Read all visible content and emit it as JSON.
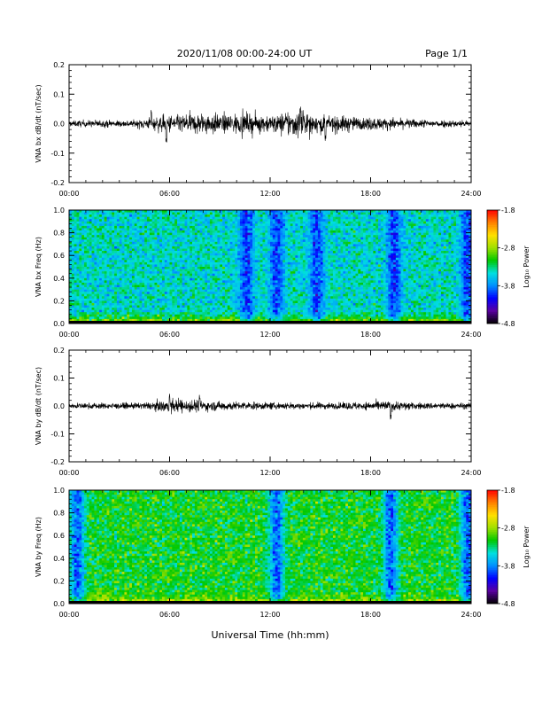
{
  "header": {
    "title": "2020/11/08  00:00-24:00 UT",
    "page": "Page 1/1"
  },
  "footer": {
    "xlabel": "Universal Time (hh:mm)"
  },
  "colors": {
    "trace": "#000000",
    "colormap": [
      "#000000",
      "#5a00a0",
      "#0000ff",
      "#0090ff",
      "#00e0e0",
      "#00c800",
      "#a0e000",
      "#ffe000",
      "#ff8000",
      "#ff0000"
    ]
  },
  "chart_data": [
    {
      "type": "line",
      "ylabel": "VNA bx dB/dt (nT/sec)",
      "ylim": [
        -0.2,
        0.2
      ],
      "yticks": [
        "0.2",
        "0.1",
        "0.0",
        "-0.1",
        "-0.2"
      ],
      "xticks": [
        "00:00",
        "06:00",
        "12:00",
        "18:00",
        "24:00"
      ],
      "xlim_hours": [
        0,
        24
      ],
      "baseline_amplitude": 0.008,
      "envelope_hours": [
        0,
        1,
        2,
        3,
        4,
        5,
        6,
        7,
        8,
        9,
        10,
        11,
        12,
        13,
        14,
        15,
        16,
        17,
        18,
        19,
        20,
        21,
        22,
        23,
        24
      ],
      "envelope_amplitude": [
        0.012,
        0.014,
        0.015,
        0.014,
        0.015,
        0.03,
        0.04,
        0.045,
        0.05,
        0.045,
        0.05,
        0.045,
        0.04,
        0.06,
        0.06,
        0.04,
        0.04,
        0.03,
        0.03,
        0.025,
        0.02,
        0.018,
        0.015,
        0.015,
        0.014
      ],
      "spikes": [
        {
          "hour": 4.9,
          "value": 0.05
        },
        {
          "hour": 5.8,
          "value": -0.07
        },
        {
          "hour": 13.8,
          "value": 0.06
        },
        {
          "hour": 15.3,
          "value": -0.06
        }
      ]
    },
    {
      "type": "heatmap",
      "ylabel": "VNA bx Freq (Hz)",
      "ylim": [
        0,
        1.0
      ],
      "yticks": [
        "1.0",
        "0.8",
        "0.6",
        "0.4",
        "0.2",
        "0.0"
      ],
      "xticks": [
        "00:00",
        "06:00",
        "12:00",
        "18:00",
        "24:00"
      ],
      "xlim_hours": [
        0,
        24
      ],
      "colorbar": {
        "label": "Log₁₀ Power",
        "range": [
          -4.8,
          -1.8
        ],
        "ticks": [
          "-1.8",
          "-2.8",
          "-3.8",
          "-4.8"
        ]
      },
      "background_level": -3.45,
      "low_freq_peak_level": -2.0,
      "dark_bands_hours": [
        10.6,
        12.4,
        14.8,
        19.4,
        23.8
      ],
      "dark_bands_level": -4.0
    },
    {
      "type": "line",
      "ylabel": "VNA by dB/dt (nT/sec)",
      "ylim": [
        -0.2,
        0.2
      ],
      "yticks": [
        "0.2",
        "0.1",
        "0.0",
        "-0.1",
        "-0.2"
      ],
      "xticks": [
        "00:00",
        "06:00",
        "12:00",
        "18:00",
        "24:00"
      ],
      "xlim_hours": [
        0,
        24
      ],
      "baseline_amplitude": 0.008,
      "envelope_hours": [
        0,
        1,
        2,
        3,
        4,
        5,
        6,
        7,
        8,
        9,
        10,
        11,
        12,
        13,
        14,
        15,
        16,
        17,
        18,
        19,
        20,
        21,
        22,
        23,
        24
      ],
      "envelope_amplitude": [
        0.012,
        0.013,
        0.013,
        0.012,
        0.014,
        0.018,
        0.03,
        0.035,
        0.025,
        0.02,
        0.02,
        0.018,
        0.016,
        0.016,
        0.015,
        0.015,
        0.015,
        0.018,
        0.02,
        0.025,
        0.02,
        0.015,
        0.014,
        0.014,
        0.013
      ],
      "spikes": [
        {
          "hour": 6.0,
          "value": 0.045
        },
        {
          "hour": 7.8,
          "value": 0.04
        },
        {
          "hour": 19.2,
          "value": -0.05
        }
      ]
    },
    {
      "type": "heatmap",
      "ylabel": "VNA by Freq (Hz)",
      "ylim": [
        0,
        1.0
      ],
      "yticks": [
        "1.0",
        "0.8",
        "0.6",
        "0.4",
        "0.2",
        "0.0"
      ],
      "xticks": [
        "00:00",
        "06:00",
        "12:00",
        "18:00",
        "24:00"
      ],
      "xlim_hours": [
        0,
        24
      ],
      "colorbar": {
        "label": "Log₁₀ Power",
        "range": [
          -4.8,
          -1.8
        ],
        "ticks": [
          "-1.8",
          "-2.8",
          "-3.8",
          "-4.8"
        ]
      },
      "background_level": -3.15,
      "low_freq_peak_level": -2.2,
      "dark_bands_hours": [
        0.5,
        12.4,
        19.2,
        23.8
      ],
      "dark_bands_level": -3.9
    }
  ]
}
